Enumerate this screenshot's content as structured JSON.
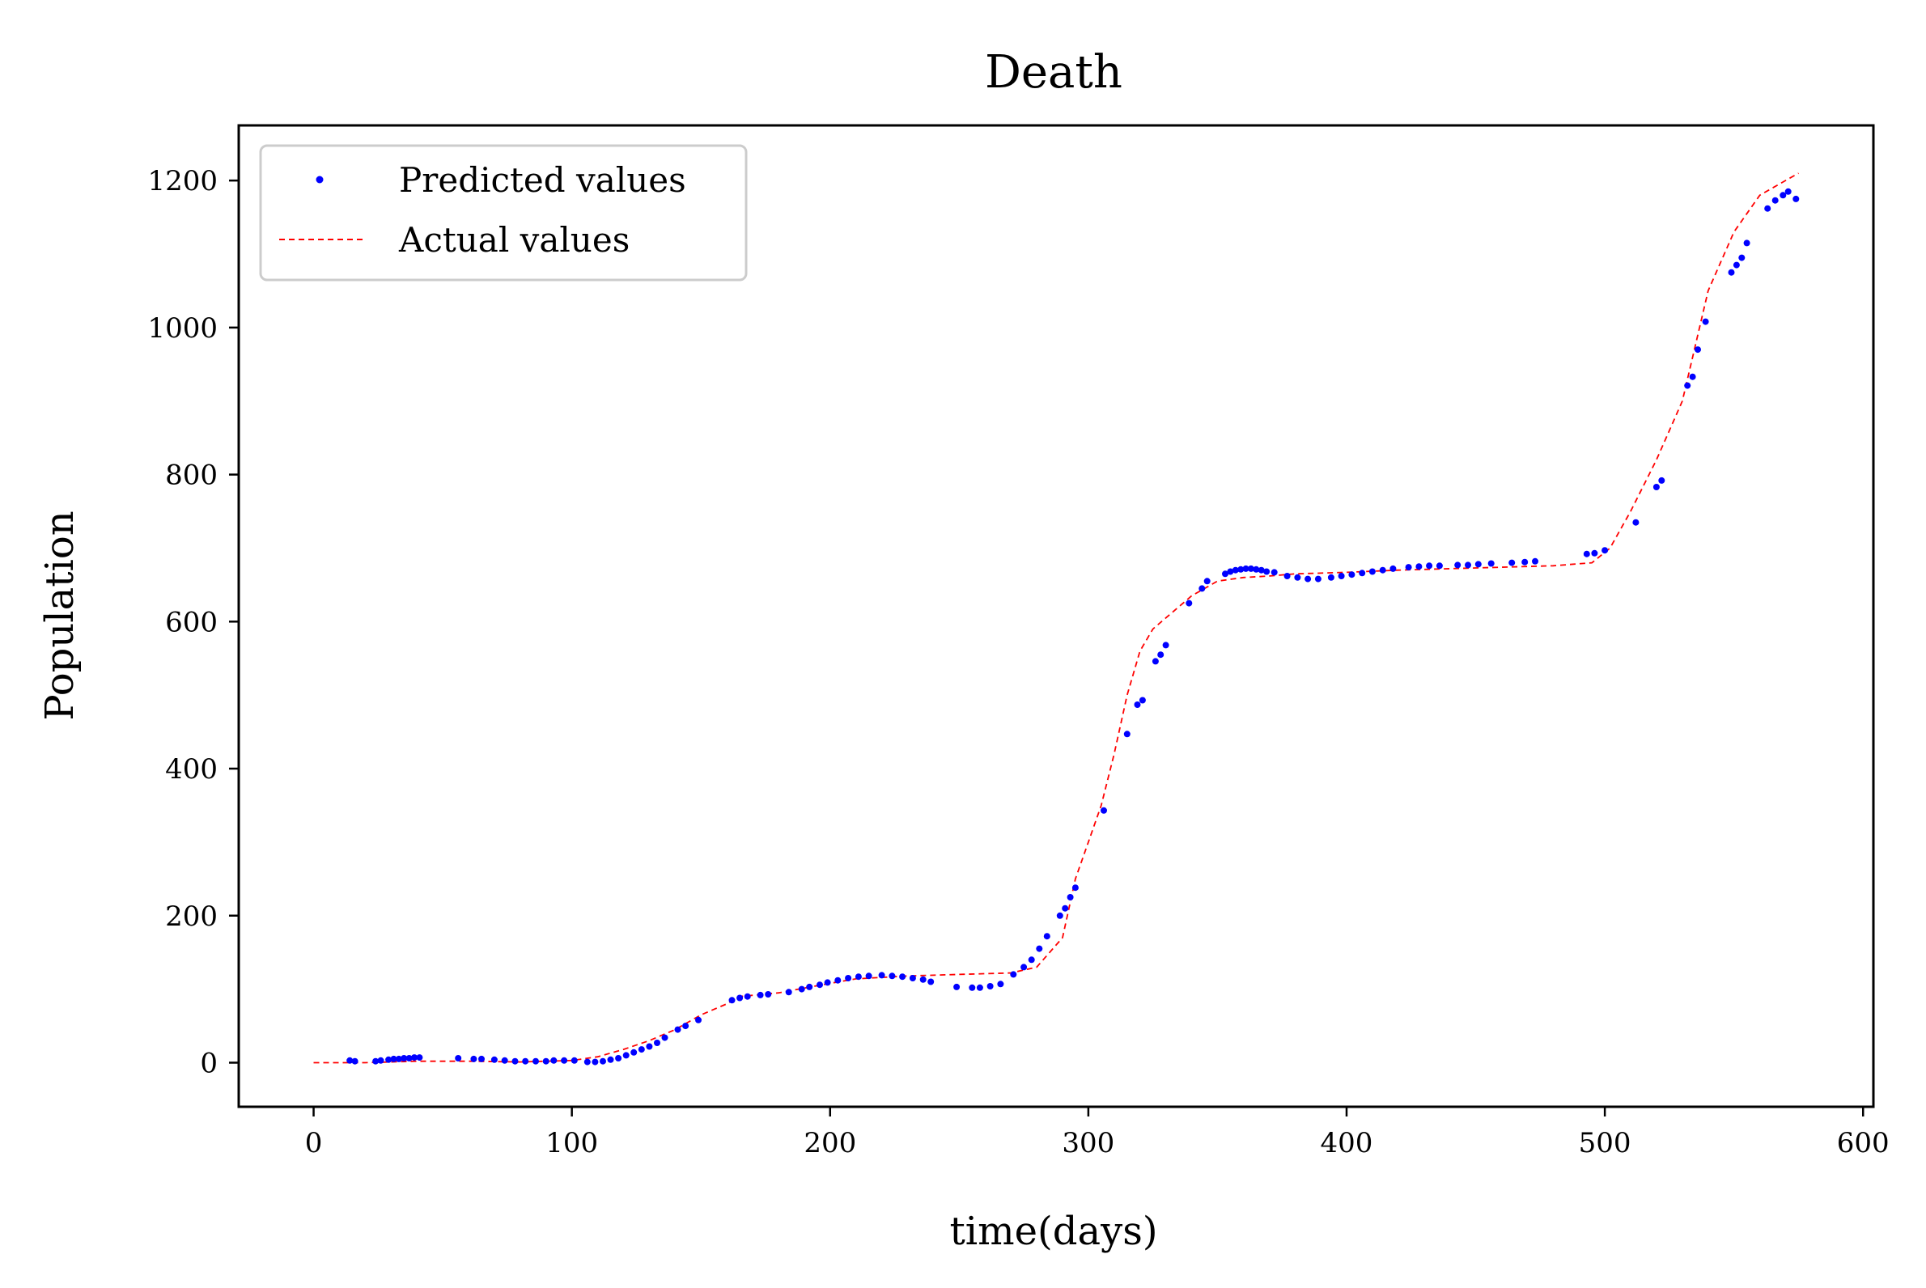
{
  "chart_data": {
    "type": "line",
    "title": "Death",
    "xlabel": "time(days)",
    "ylabel": "Population",
    "xlim": [
      -29,
      604
    ],
    "ylim": [
      -60,
      1275
    ],
    "xticks": [
      0,
      100,
      200,
      300,
      400,
      500,
      600
    ],
    "yticks": [
      0,
      200,
      400,
      600,
      800,
      1000,
      1200
    ],
    "legend": {
      "position": "top-left",
      "entries": [
        {
          "label": "Predicted values",
          "style": "dots",
          "color": "#0000ff"
        },
        {
          "label": "Actual values",
          "style": "dashed",
          "color": "#ff0000"
        }
      ]
    },
    "series": [
      {
        "name": "Actual values",
        "kind": "dashed-line",
        "color": "#ff0000",
        "x": [
          0,
          20,
          40,
          60,
          80,
          100,
          110,
          120,
          130,
          140,
          150,
          160,
          165,
          180,
          200,
          210,
          230,
          250,
          270,
          280,
          290,
          295,
          300,
          305,
          310,
          315,
          320,
          325,
          330,
          335,
          340,
          350,
          360,
          370,
          380,
          400,
          420,
          440,
          460,
          480,
          495,
          502,
          510,
          520,
          525,
          530,
          540,
          550,
          560,
          570,
          575
        ],
        "y": [
          0,
          0,
          2,
          2,
          1,
          3,
          8,
          18,
          30,
          45,
          65,
          80,
          90,
          95,
          108,
          114,
          118,
          120,
          122,
          130,
          170,
          250,
          300,
          350,
          420,
          500,
          560,
          590,
          605,
          620,
          635,
          655,
          660,
          662,
          665,
          667,
          670,
          672,
          674,
          676,
          680,
          700,
          750,
          820,
          860,
          900,
          1050,
          1130,
          1180,
          1200,
          1210
        ]
      },
      {
        "name": "Predicted values",
        "kind": "dots",
        "color": "#0000ff",
        "x": [
          14,
          16,
          24,
          26,
          29,
          31,
          33,
          35,
          37,
          39,
          41,
          56,
          62,
          65,
          70,
          74,
          78,
          82,
          86,
          90,
          93,
          97,
          101,
          106,
          109,
          112,
          115,
          118,
          121,
          124,
          127,
          130,
          133,
          136,
          141,
          144,
          149,
          162,
          165,
          168,
          173,
          176,
          184,
          189,
          192,
          196,
          199,
          203,
          207,
          211,
          215,
          220,
          224,
          228,
          232,
          236,
          239,
          249,
          255,
          258,
          262,
          266,
          271,
          275,
          278,
          281,
          284,
          289,
          291,
          293,
          295,
          306,
          315,
          319,
          321,
          326,
          328,
          330,
          339,
          344,
          346,
          353,
          355,
          357,
          359,
          361,
          363,
          365,
          367,
          369,
          372,
          377,
          381,
          385,
          389,
          394,
          398,
          402,
          406,
          410,
          414,
          418,
          424,
          428,
          432,
          436,
          443,
          447,
          451,
          456,
          464,
          469,
          473,
          493,
          496,
          500,
          512,
          520,
          522,
          532,
          534,
          536,
          539,
          549,
          551,
          553,
          555,
          563,
          566,
          569,
          571,
          574
        ],
        "y": [
          3,
          2,
          2,
          3,
          4,
          5,
          5,
          6,
          6,
          7,
          7,
          6,
          5,
          5,
          4,
          3,
          2,
          2,
          2,
          2,
          3,
          3,
          3,
          1,
          1,
          2,
          4,
          6,
          10,
          14,
          18,
          22,
          27,
          34,
          45,
          50,
          58,
          85,
          88,
          90,
          92,
          93,
          96,
          100,
          103,
          106,
          109,
          112,
          115,
          117,
          118,
          119,
          118,
          117,
          115,
          113,
          110,
          103,
          102,
          102,
          104,
          107,
          120,
          130,
          140,
          155,
          172,
          200,
          210,
          225,
          238,
          343,
          447,
          487,
          493,
          546,
          555,
          568,
          625,
          645,
          655,
          665,
          668,
          670,
          671,
          672,
          672,
          671,
          670,
          668,
          667,
          662,
          660,
          658,
          658,
          660,
          662,
          664,
          666,
          668,
          670,
          672,
          674,
          675,
          676,
          676,
          677,
          677,
          678,
          679,
          680,
          681,
          682,
          692,
          693,
          697,
          735,
          783,
          792,
          921,
          933,
          970,
          1008,
          1075,
          1085,
          1095,
          1115,
          1162,
          1173,
          1180,
          1185,
          1175
        ]
      }
    ]
  }
}
